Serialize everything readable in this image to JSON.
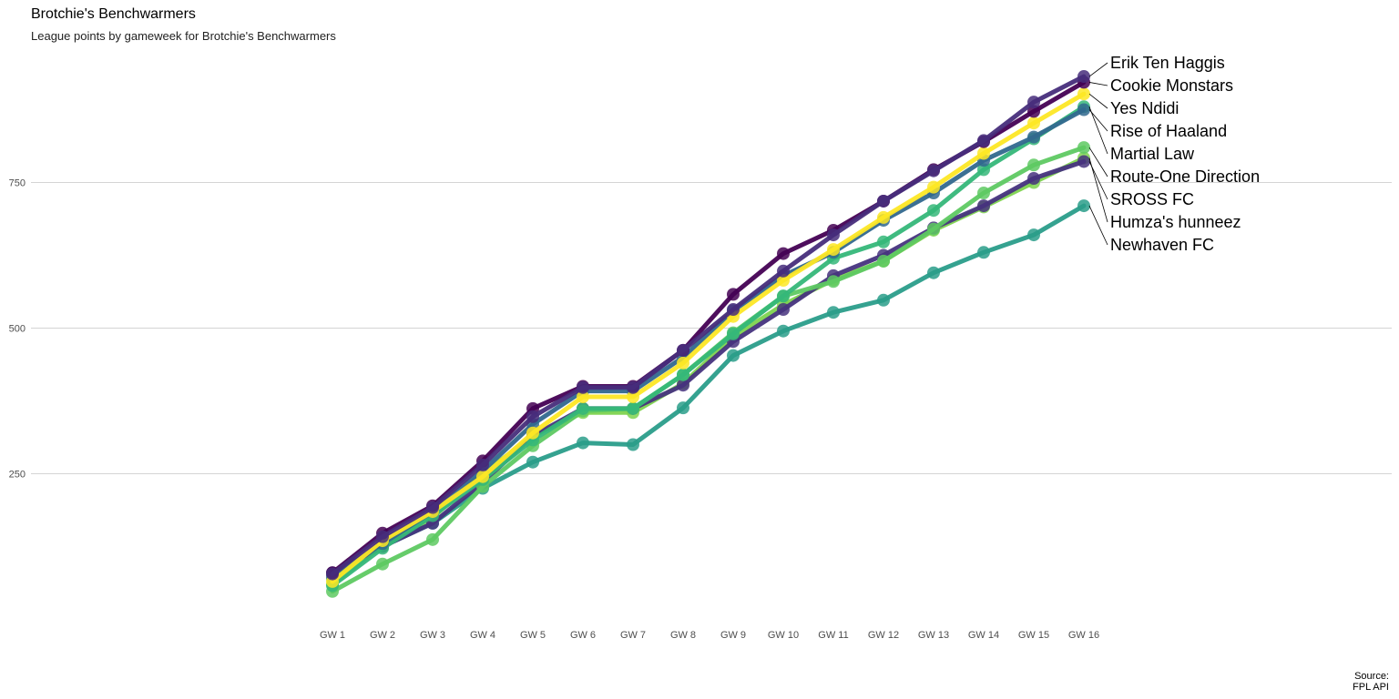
{
  "title": "Brotchie's Benchwarmers",
  "subtitle": "League points by gameweek for Brotchie's Benchwarmers",
  "caption_line1": "Source:",
  "caption_line2": "FPL API",
  "chart_data": {
    "type": "line",
    "title": "Brotchie's Benchwarmers",
    "subtitle": "League points by gameweek for Brotchie's Benchwarmers",
    "xlabel": "",
    "ylabel": "",
    "categories": [
      "GW 1",
      "GW 2",
      "GW 3",
      "GW 4",
      "GW 5",
      "GW 6",
      "GW 7",
      "GW 8",
      "GW 9",
      "GW 10",
      "GW 11",
      "GW 12",
      "GW 13",
      "GW 14",
      "GW 15",
      "GW 16"
    ],
    "yticks": [
      250,
      500,
      750
    ],
    "ylim": [
      0,
      1000
    ],
    "grid": "horizontal major",
    "legend": "direct labels at line ends",
    "series": [
      {
        "name": "Newhaven FC",
        "color": "#2a9d8a",
        "values": [
          70,
          125,
          165,
          225,
          270,
          303,
          300,
          363,
          453,
          495,
          527,
          548,
          595,
          630,
          660,
          710
        ]
      },
      {
        "name": "Humza's hunneez",
        "color": "#7ed34f",
        "values": [
          60,
          128,
          175,
          250,
          315,
          355,
          355,
          405,
          485,
          540,
          583,
          615,
          668,
          708,
          750,
          792
        ]
      },
      {
        "name": "SROSS FC",
        "color": "#46337e",
        "values": [
          80,
          125,
          165,
          235,
          315,
          362,
          362,
          402,
          477,
          532,
          590,
          625,
          672,
          710,
          757,
          786
        ]
      },
      {
        "name": "Route-One Direction",
        "color": "#5ec962",
        "values": [
          48,
          95,
          137,
          228,
          298,
          358,
          362,
          420,
          492,
          555,
          580,
          615,
          670,
          732,
          780,
          810
        ]
      },
      {
        "name": "Martial Law",
        "color": "#35b779",
        "values": [
          58,
          122,
          178,
          240,
          308,
          362,
          362,
          420,
          490,
          555,
          620,
          648,
          702,
          772,
          825,
          880
        ]
      },
      {
        "name": "Rise of Haaland",
        "color": "#31688e",
        "values": [
          75,
          130,
          185,
          255,
          335,
          392,
          392,
          450,
          530,
          590,
          630,
          685,
          732,
          788,
          828,
          875
        ]
      },
      {
        "name": "Yes Ndidi",
        "color": "#fde725",
        "values": [
          65,
          135,
          185,
          245,
          320,
          382,
          382,
          440,
          520,
          582,
          635,
          690,
          742,
          800,
          852,
          902
        ]
      },
      {
        "name": "Cookie Monstars",
        "color": "#440154",
        "values": [
          80,
          148,
          195,
          272,
          362,
          400,
          400,
          462,
          558,
          628,
          668,
          718,
          772,
          820,
          872,
          922
        ]
      },
      {
        "name": "Erik Ten Haggis",
        "color": "#472d7b",
        "values": [
          78,
          142,
          192,
          265,
          348,
          398,
          398,
          462,
          532,
          598,
          660,
          718,
          770,
          822,
          888,
          932
        ]
      }
    ],
    "label_order": [
      "Erik Ten Haggis",
      "Cookie Monstars",
      "Yes Ndidi",
      "Rise of Haaland",
      "Martial Law",
      "Route-One Direction",
      "SROSS FC",
      "Humza's hunneez",
      "Newhaven FC"
    ]
  }
}
